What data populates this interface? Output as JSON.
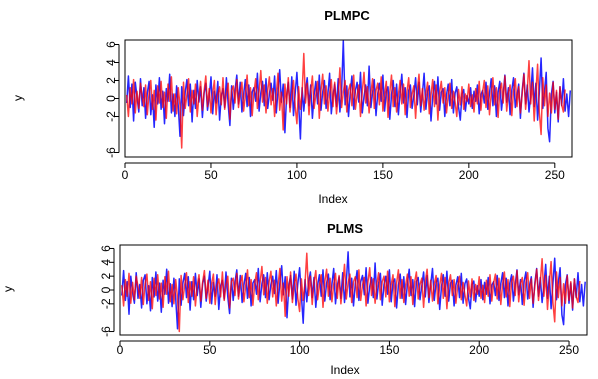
{
  "chart_data": [
    {
      "type": "line",
      "title": "PLMPC",
      "xlabel": "Index",
      "ylabel": "y",
      "xlim": [
        0,
        260
      ],
      "ylim": [
        -6.5,
        6.5
      ],
      "x_ticks": [
        "0",
        "50",
        "100",
        "150",
        "200",
        "250"
      ],
      "y_ticks": [
        "-6",
        "-2",
        "0",
        "2",
        "4",
        "6"
      ],
      "grid": false,
      "series": [
        {
          "color": "#0000ff",
          "values": [
            -0.5,
            2.5,
            -1.0,
            1.6,
            -2.5,
            1.8,
            0.2,
            -1.5,
            2.2,
            -0.8,
            1.2,
            -2.2,
            0.6,
            1.9,
            -1.8,
            0.4,
            -3.2,
            1.5,
            -0.6,
            2.3,
            -1.2,
            0.8,
            -2.8,
            1.1,
            -0.3,
            2.7,
            -1.6,
            0.5,
            -2.0,
            1.4,
            -0.9,
            -4.2,
            1.3,
            -1.9,
            0.7,
            2.1,
            -0.8,
            1.6,
            -2.6,
            0.9,
            -1.1,
            2.0,
            -0.4,
            1.3,
            -2.1,
            0.6,
            1.7,
            -1.3,
            0.2,
            2.4,
            -1.7,
            0.8,
            -0.5,
            1.9,
            -2.4,
            0.3,
            1.1,
            -1.0,
            2.3,
            -0.7,
            -3.0,
            1.4,
            -1.2,
            0.9,
            2.6,
            -0.6,
            1.8,
            -1.5,
            0.4,
            2.1,
            -0.9,
            1.5,
            -2.0,
            0.7,
            1.2,
            -0.3,
            2.8,
            -1.4,
            0.6,
            1.9,
            -0.8,
            2.2,
            -1.1,
            0.5,
            1.7,
            -0.2,
            2.5,
            -1.6,
            0.8,
            3.2,
            -0.4,
            1.6,
            -3.8,
            0.3,
            1.8,
            -1.0,
            2.4,
            -1.9,
            0.6,
            2.9,
            -0.5,
            -4.5,
            1.2,
            -1.4,
            0.9,
            2.3,
            -0.8,
            1.5,
            -2.2,
            0.4,
            1.9,
            -0.6,
            2.6,
            -1.3,
            0.7,
            2.0,
            -1.1,
            0.5,
            2.8,
            -1.7,
            0.3,
            1.6,
            -0.9,
            2.2,
            -1.5,
            0.8,
            6.4,
            -0.7,
            1.4,
            -2.0,
            0.6,
            2.5,
            -1.2,
            0.9,
            1.8,
            -0.4,
            2.9,
            -1.6,
            0.2,
            1.5,
            -0.8,
            3.6,
            -1.0,
            0.7,
            2.1,
            -1.9,
            0.5,
            1.7,
            -0.3,
            2.6,
            -1.4,
            0.8,
            1.3,
            -2.3,
            0.4,
            2.0,
            -0.9,
            1.6,
            -1.8,
            0.6,
            2.7,
            -0.5,
            1.2,
            -2.1,
            0.9,
            1.5,
            -1.1,
            0.3,
            2.3,
            -0.7,
            1.8,
            -1.5,
            0.5,
            2.8,
            -1.2,
            0.8,
            1.4,
            -2.5,
            0.2,
            1.9,
            -0.6,
            2.4,
            -1.3,
            0.7,
            1.1,
            -2.0,
            0.4,
            1.6,
            -0.8,
            2.1,
            -1.6,
            0.6,
            1.3,
            -0.9,
            -2.4,
            0.5,
            1.0,
            -1.4,
            0.3,
            -0.6,
            1.2,
            -1.1,
            0.8,
            -0.3,
            1.5,
            -1.7,
            0.4,
            0.9,
            -0.5,
            1.8,
            -1.2,
            0.6,
            2.2,
            -0.8,
            1.4,
            -2.0,
            0.7,
            1.9,
            -1.3,
            0.5,
            2.6,
            -0.4,
            1.2,
            -1.8,
            0.9,
            2.3,
            -1.0,
            0.3,
            1.6,
            -2.2,
            0.8,
            2.8,
            -0.6,
            1.5,
            -1.5,
            0.4,
            3.4,
            -0.9,
            1.7,
            -2.4,
            0.6,
            4.5,
            -1.1,
            0.8,
            2.9,
            -3.3,
            -4.8,
            0.5,
            1.9,
            -1.6,
            0.7,
            -2.6,
            1.3,
            -0.8,
            2.2,
            -1.4,
            0.5,
            -2.0,
            0.9
          ]
        },
        {
          "color": "#ff0000",
          "values": [
            0.4,
            -2.0,
            1.2,
            -0.6,
            2.1,
            -1.6,
            0.8,
            -1.1,
            1.7,
            0.2,
            -0.9,
            1.5,
            -1.8,
            0.6,
            2.0,
            -1.2,
            0.9,
            -2.4,
            1.4,
            -0.5,
            1.9,
            -1.0,
            0.7,
            -2.2,
            1.6,
            -0.3,
            2.4,
            -1.4,
            0.5,
            -1.7,
            1.2,
            -0.8,
            -5.5,
            1.8,
            -1.1,
            0.4,
            2.2,
            -1.5,
            0.9,
            -0.6,
            1.6,
            -2.0,
            0.3,
            1.9,
            -1.3,
            0.8,
            2.5,
            -0.9,
            1.1,
            -1.6,
            0.6,
            2.0,
            -1.8,
            0.4,
            1.3,
            -0.7,
            2.3,
            -1.2,
            0.5,
            1.7,
            -2.3,
            0.9,
            1.4,
            -0.5,
            2.1,
            -1.0,
            0.7,
            1.8,
            -1.4,
            0.3,
            2.6,
            -0.8,
            1.2,
            -1.9,
            0.6,
            2.2,
            -1.1,
            0.8,
            3.1,
            -0.4,
            1.5,
            -1.6,
            0.9,
            2.4,
            -0.7,
            1.1,
            -2.0,
            0.5,
            2.8,
            -1.3,
            0.7,
            -3.5,
            1.6,
            -0.6,
            2.3,
            -1.5,
            0.4,
            2.0,
            -0.9,
            -2.8,
            1.3,
            -1.2,
            0.6,
            5.0,
            -0.5,
            1.7,
            -1.8,
            0.8,
            2.5,
            -1.1,
            0.4,
            1.9,
            -2.2,
            0.9,
            2.7,
            -0.6,
            1.4,
            -1.4,
            0.5,
            2.1,
            -0.9,
            1.8,
            -1.7,
            0.3,
            3.4,
            -1.0,
            0.7,
            2.0,
            -1.5,
            0.9,
            1.6,
            -0.8,
            2.6,
            -1.2,
            0.4,
            1.5,
            -2.0,
            0.8,
            2.9,
            -0.5,
            1.3,
            -1.6,
            0.6,
            2.2,
            -1.1,
            0.9,
            1.7,
            -0.7,
            2.4,
            -1.4,
            0.5,
            1.9,
            -2.1,
            0.7,
            2.6,
            -0.9,
            1.2,
            -1.5,
            0.4,
            2.0,
            -0.6,
            1.6,
            -1.8,
            0.8,
            2.3,
            -1.0,
            0.5,
            1.4,
            -2.2,
            0.9,
            2.7,
            -0.8,
            1.1,
            -1.3,
            0.6,
            1.8,
            -1.7,
            0.4,
            2.1,
            -0.9,
            1.5,
            -2.4,
            0.7,
            1.9,
            -0.5,
            1.2,
            -1.6,
            0.3,
            1.7,
            -1.1,
            0.8,
            -0.4,
            -2.0,
            1.0,
            -0.7,
            1.3,
            -1.2,
            0.5,
            -0.3,
            1.6,
            -0.9,
            0.4,
            -1.5,
            1.1,
            -0.6,
            1.9,
            -1.3,
            0.7,
            2.0,
            -1.0,
            1.4,
            -1.8,
            0.5,
            2.3,
            -0.7,
            1.2,
            -2.1,
            0.9,
            1.7,
            -0.5,
            2.5,
            -1.4,
            0.6,
            1.5,
            -1.9,
            0.8,
            2.2,
            -0.9,
            1.3,
            -1.6,
            0.4,
            2.7,
            -1.2,
            0.9,
            4.2,
            -0.6,
            1.8,
            -2.5,
            0.7,
            3.8,
            -1.5,
            -4.0,
            2.3,
            -0.8,
            1.5,
            -2.0,
            0.6,
            -1.6,
            1.8,
            -1.2,
            0.9,
            -2.3,
            1.3,
            -0.7,
            -1.5,
            1.0
          ]
        }
      ]
    },
    {
      "type": "line",
      "title": "PLMS",
      "xlabel": "Index",
      "ylabel": "y",
      "xlim": [
        0,
        260
      ],
      "ylim": [
        -6.5,
        6.5
      ],
      "x_ticks": [
        "0",
        "50",
        "100",
        "150",
        "200",
        "250"
      ],
      "y_ticks": [
        "-6",
        "-2",
        "0",
        "2",
        "4",
        "6"
      ],
      "grid": false,
      "series": [
        {
          "color": "#0000ff",
          "values": [
            -0.8,
            2.8,
            -1.5,
            1.2,
            -3.5,
            2.0,
            -0.4,
            -1.9,
            2.5,
            -1.2,
            0.8,
            -2.6,
            1.4,
            2.2,
            -2.0,
            0.6,
            -3.0,
            1.8,
            -1.0,
            2.6,
            -1.6,
            1.0,
            -3.2,
            1.4,
            -0.6,
            3.0,
            -1.9,
            0.9,
            -2.4,
            1.7,
            -1.2,
            -5.6,
            1.6,
            -2.2,
            1.0,
            2.4,
            -1.1,
            1.9,
            -2.9,
            1.2,
            -1.4,
            2.4,
            -0.8,
            1.6,
            -2.5,
            0.9,
            2.0,
            -1.6,
            0.5,
            2.7,
            -2.0,
            1.1,
            -0.9,
            2.2,
            -2.8,
            0.6,
            1.4,
            -1.3,
            2.6,
            -1.0,
            -3.4,
            1.7,
            -1.5,
            1.2,
            2.9,
            -0.9,
            2.1,
            -1.8,
            0.7,
            2.4,
            -1.2,
            1.8,
            -2.3,
            1.0,
            1.5,
            -0.6,
            3.1,
            -1.7,
            0.9,
            2.2,
            -1.1,
            2.5,
            -1.4,
            0.8,
            2.0,
            -0.5,
            2.8,
            -1.9,
            1.1,
            3.5,
            -0.7,
            1.9,
            -4.0,
            0.6,
            2.1,
            -1.3,
            2.7,
            -2.2,
            0.9,
            3.2,
            -0.8,
            -4.8,
            1.5,
            -1.7,
            1.2,
            2.6,
            -1.1,
            1.8,
            -2.5,
            0.7,
            2.2,
            -0.9,
            2.9,
            -1.6,
            1.0,
            2.3,
            -1.4,
            0.8,
            3.1,
            -2.0,
            0.6,
            1.9,
            -1.2,
            2.5,
            -1.8,
            1.1,
            5.5,
            -1.0,
            1.7,
            -2.3,
            0.9,
            2.8,
            -1.5,
            1.2,
            2.1,
            -0.7,
            3.2,
            -1.9,
            0.5,
            1.8,
            -1.1,
            3.9,
            -1.3,
            1.0,
            2.4,
            -2.2,
            0.8,
            2.0,
            -0.6,
            2.9,
            -1.7,
            1.1,
            1.6,
            -2.6,
            0.7,
            2.3,
            -1.2,
            1.9,
            -2.1,
            0.9,
            3.0,
            -0.8,
            1.5,
            -2.4,
            1.2,
            1.8,
            -1.4,
            0.6,
            2.6,
            -1.0,
            2.1,
            -1.8,
            0.8,
            3.1,
            -1.5,
            1.1,
            1.7,
            -2.8,
            0.5,
            2.2,
            -0.9,
            2.7,
            -1.6,
            1.0,
            1.4,
            -2.3,
            0.7,
            1.9,
            -1.1,
            2.4,
            -1.9,
            0.9,
            1.6,
            -1.2,
            -2.7,
            0.8,
            1.3,
            -1.7,
            0.6,
            -0.9,
            1.5,
            -1.4,
            1.1,
            -0.6,
            1.8,
            -2.0,
            0.7,
            1.2,
            -0.8,
            2.1,
            -1.5,
            0.9,
            2.5,
            -1.1,
            1.7,
            -2.3,
            1.0,
            2.2,
            -1.6,
            0.8,
            2.9,
            -0.7,
            1.5,
            -2.1,
            1.2,
            2.6,
            -1.3,
            0.6,
            1.9,
            -2.5,
            1.1,
            3.1,
            -0.9,
            1.8,
            -1.8,
            0.7,
            3.7,
            -1.2,
            2.0,
            -2.7,
            0.9,
            4.6,
            -1.4,
            1.1,
            3.2,
            -3.6,
            -5.0,
            0.8,
            2.2,
            -1.9,
            1.0,
            -2.9,
            1.6,
            -1.1,
            2.5,
            -1.7,
            0.8,
            -2.3,
            1.2
          ]
        },
        {
          "color": "#ff0000",
          "values": [
            0.7,
            -2.3,
            1.5,
            -0.9,
            2.4,
            -1.9,
            1.1,
            -1.4,
            2.0,
            0.5,
            -1.2,
            1.8,
            -2.1,
            0.9,
            2.3,
            -1.5,
            1.2,
            -2.7,
            1.7,
            -0.8,
            2.2,
            -1.3,
            1.0,
            -2.5,
            1.9,
            -0.6,
            2.7,
            -1.7,
            0.8,
            -2.0,
            1.5,
            -1.1,
            -6.0,
            2.1,
            -1.4,
            0.7,
            2.5,
            -1.8,
            1.2,
            -0.9,
            1.9,
            -2.3,
            0.6,
            2.2,
            -1.6,
            1.1,
            2.8,
            -1.2,
            1.4,
            -1.9,
            0.9,
            2.3,
            -2.1,
            0.7,
            1.6,
            -1.0,
            2.6,
            -1.5,
            0.8,
            2.0,
            -2.6,
            1.2,
            1.7,
            -0.8,
            2.4,
            -1.3,
            1.0,
            2.1,
            -1.7,
            0.6,
            2.9,
            -1.1,
            1.5,
            -2.2,
            0.9,
            2.5,
            -1.4,
            1.1,
            3.4,
            -0.7,
            1.8,
            -1.9,
            1.2,
            2.7,
            -1.0,
            1.4,
            -2.3,
            0.8,
            3.1,
            -1.6,
            1.0,
            -3.8,
            1.9,
            -0.9,
            2.6,
            -1.8,
            0.7,
            2.3,
            -1.2,
            -3.1,
            1.6,
            -1.5,
            0.9,
            5.3,
            -0.8,
            2.0,
            -2.1,
            1.1,
            2.8,
            -1.4,
            0.7,
            2.2,
            -2.5,
            1.2,
            3.0,
            -0.9,
            1.7,
            -1.7,
            0.8,
            2.4,
            -1.2,
            2.1,
            -2.0,
            0.6,
            3.7,
            -1.3,
            1.0,
            2.3,
            -1.8,
            1.2,
            1.9,
            -1.1,
            2.9,
            -1.5,
            0.7,
            1.8,
            -2.3,
            1.1,
            3.2,
            -0.8,
            1.6,
            -1.9,
            0.9,
            2.5,
            -1.4,
            1.2,
            2.0,
            -1.0,
            2.7,
            -1.7,
            0.8,
            2.2,
            -2.4,
            1.0,
            2.9,
            -1.2,
            1.5,
            -1.8,
            0.7,
            2.3,
            -0.9,
            1.9,
            -2.1,
            1.1,
            2.6,
            -1.3,
            0.8,
            1.7,
            -2.5,
            1.2,
            3.0,
            -1.1,
            1.4,
            -1.6,
            0.9,
            2.1,
            -2.0,
            0.7,
            2.4,
            -1.2,
            1.8,
            -2.7,
            1.0,
            2.2,
            -0.8,
            1.5,
            -1.9,
            0.6,
            2.0,
            -1.4,
            1.1,
            -0.7,
            -2.3,
            1.3,
            -1.0,
            1.6,
            -1.5,
            0.8,
            -0.6,
            1.9,
            -1.2,
            0.7,
            -1.8,
            1.4,
            -0.9,
            2.2,
            -1.6,
            1.0,
            2.3,
            -1.3,
            1.7,
            -2.1,
            0.8,
            2.6,
            -1.0,
            1.5,
            -2.4,
            1.2,
            2.0,
            -0.8,
            2.8,
            -1.7,
            0.9,
            1.8,
            -2.2,
            1.1,
            2.5,
            -1.2,
            1.6,
            -1.9,
            0.7,
            3.0,
            -1.5,
            1.2,
            4.5,
            -0.9,
            2.1,
            -2.8,
            1.0,
            4.1,
            -1.8,
            -4.6,
            2.6,
            -1.1,
            1.8,
            -2.3,
            0.9,
            -1.9,
            2.1,
            -1.5,
            1.2,
            -2.6,
            1.6,
            -1.0,
            -1.8,
            1.3
          ]
        }
      ]
    }
  ]
}
